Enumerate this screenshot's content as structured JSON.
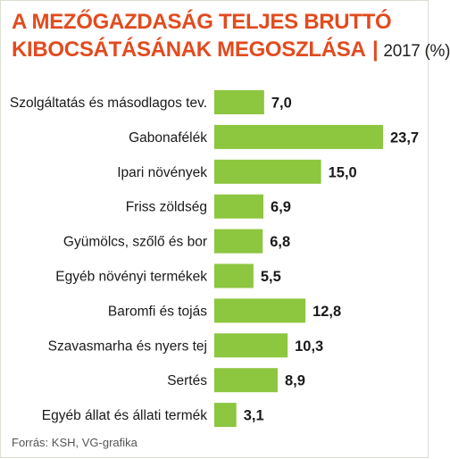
{
  "title_line1": "A MEZŐGAZDASÁG TELJES BRUTTÓ",
  "title_line2": "KIBOCSÁTÁSÁNAK MEGOSZLÁSA",
  "title_separator": "|",
  "title_year_unit": "2017 (%)",
  "source": "Forrás: KSH, VG-grafika",
  "colors": {
    "title": "#e24b1f",
    "bar": "#8dc63f",
    "text": "#1a1a1a"
  },
  "chart_data": {
    "type": "bar",
    "orientation": "horizontal",
    "title": "A MEZŐGAZDASÁG TELJES BRUTTÓ KIBOCSÁTÁSÁNAK MEGOSZLÁSA | 2017 (%)",
    "categories": [
      "Szolgáltatás és másodlagos tev.",
      "Gabonafélék",
      "Ipari növények",
      "Friss zöldség",
      "Gyümölcs, szőlő és bor",
      "Egyéb növényi termékek",
      "Baromfi és tojás",
      "Szavasmarha és nyers tej",
      "Sertés",
      "Egyéb állat és állati termék"
    ],
    "values": [
      7.0,
      23.7,
      15.0,
      6.9,
      6.8,
      5.5,
      12.8,
      10.3,
      8.9,
      3.1
    ],
    "value_labels": [
      "7,0",
      "23,7",
      "15,0",
      "6,9",
      "6,8",
      "5,5",
      "12,8",
      "10,3",
      "8,9",
      "3,1"
    ],
    "xlim": [
      0,
      23.7
    ],
    "grid": false,
    "legend": "none"
  }
}
